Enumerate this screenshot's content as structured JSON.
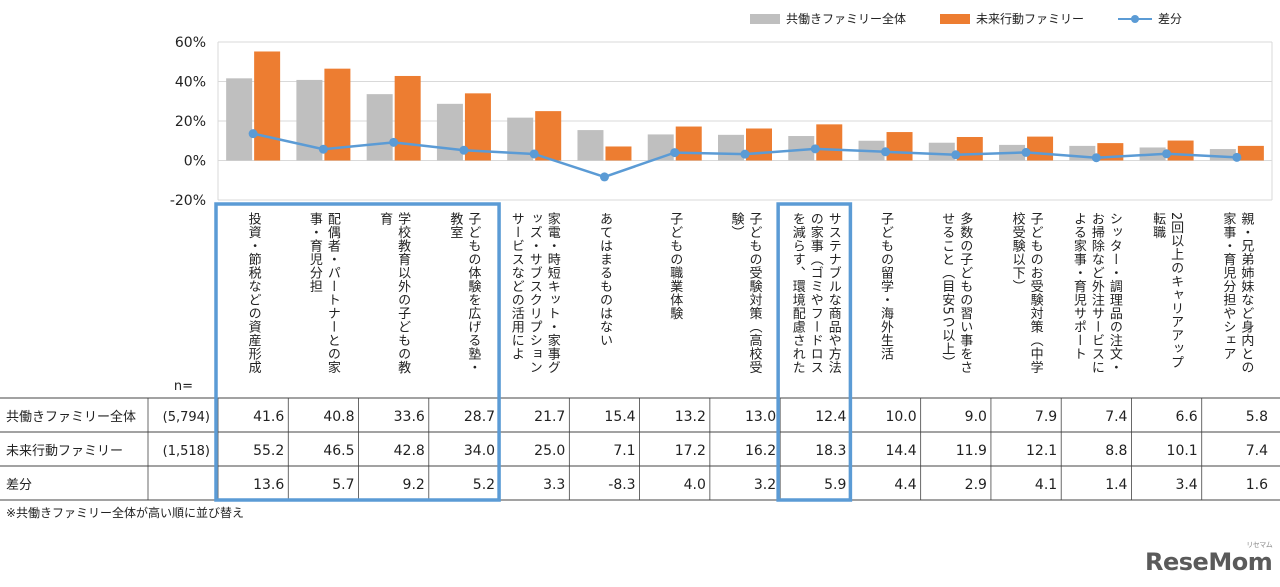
{
  "chart_data": {
    "type": "bar",
    "series": [
      {
        "name": "共働きファミリー全体",
        "kind": "bar",
        "color": "#bfbfbf",
        "values": [
          41.6,
          40.8,
          33.6,
          28.7,
          21.7,
          15.4,
          13.2,
          13.0,
          12.4,
          10.0,
          9.0,
          7.9,
          7.4,
          6.6,
          5.8
        ]
      },
      {
        "name": "未来行動ファミリー",
        "kind": "bar",
        "color": "#ed7d31",
        "values": [
          55.2,
          46.5,
          42.8,
          34.0,
          25.0,
          7.1,
          17.2,
          16.2,
          18.3,
          14.4,
          11.9,
          12.1,
          8.8,
          10.1,
          7.4
        ]
      },
      {
        "name": "差分",
        "kind": "line",
        "color": "#5b9bd5",
        "values": [
          13.6,
          5.7,
          9.2,
          5.2,
          3.3,
          -8.3,
          4.0,
          3.2,
          5.9,
          4.4,
          2.9,
          4.1,
          1.4,
          3.4,
          1.6
        ]
      }
    ],
    "categories": [
      "投資・節税などの資産形成",
      "配偶者・パートナーとの家事・育児分担",
      "学校教育以外の子どもの教育",
      "子どもの体験を広げる塾・教室",
      "家電・時短キット・家事グッズ・サブスクリプションサービスなどの活用によ",
      "あてはまるものはない",
      "子どもの職業体験",
      "子どもの受験対策（高校受験）",
      "サステナブルな商品や方法の家事（ゴミやフードロスを減らす、環境配慮された",
      "子どもの留学・海外生活",
      "多数の子どもの習い事をさせること（目安5つ以上）",
      "子どものお受験対策（中学校受験以下）",
      "シッター・調理品の注文・お掃除など外注サービスによる家事・育児サポート",
      "2回以上のキャリアアップ転職",
      "親・兄弟姉妹など身内との家事・育児分担やシェア"
    ],
    "y_ticks": [
      "60%",
      "40%",
      "20%",
      "0%",
      "-20%"
    ],
    "ylim": [
      -20,
      60
    ],
    "legend": "top-right",
    "grid": "horizontal",
    "table": {
      "n_header": "n=",
      "rows": [
        {
          "label": "共働きファミリー全体",
          "n": "(5,794)",
          "cells": [
            "41.6",
            "40.8",
            "33.6",
            "28.7",
            "21.7",
            "15.4",
            "13.2",
            "13.0",
            "12.4",
            "10.0",
            "9.0",
            "7.9",
            "7.4",
            "6.6",
            "5.8"
          ]
        },
        {
          "label": "未来行動ファミリー",
          "n": "(1,518)",
          "cells": [
            "55.2",
            "46.5",
            "42.8",
            "34.0",
            "25.0",
            "7.1",
            "17.2",
            "16.2",
            "18.3",
            "14.4",
            "11.9",
            "12.1",
            "8.8",
            "10.1",
            "7.4"
          ]
        },
        {
          "label": "差分",
          "n": "",
          "cells": [
            "13.6",
            "5.7",
            "9.2",
            "5.2",
            "3.3",
            "-8.3",
            "4.0",
            "3.2",
            "5.9",
            "4.4",
            "2.9",
            "4.1",
            "1.4",
            "3.4",
            "1.6"
          ]
        }
      ]
    },
    "highlight_color": "#5b9bd5"
  },
  "footnote": "※共働きファミリー全体が高い順に並び替え",
  "logo": {
    "text": "ReseMom",
    "sub": "リセマム"
  }
}
